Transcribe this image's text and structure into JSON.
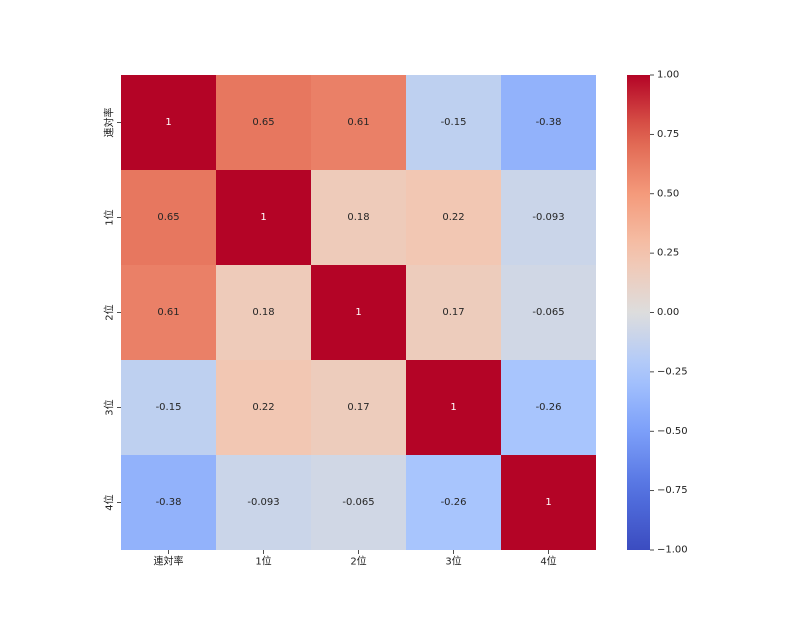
{
  "chart_data": {
    "type": "heatmap",
    "title": "",
    "xlabel": "",
    "ylabel": "",
    "x_categories": [
      "連対率",
      "1位",
      "2位",
      "3位",
      "4位"
    ],
    "y_categories": [
      "連対率",
      "1位",
      "2位",
      "3位",
      "4位"
    ],
    "values": [
      [
        1,
        0.65,
        0.61,
        -0.15,
        -0.38
      ],
      [
        0.65,
        1,
        0.18,
        0.22,
        -0.093
      ],
      [
        0.61,
        0.18,
        1,
        0.17,
        -0.065
      ],
      [
        -0.15,
        0.22,
        0.17,
        1,
        -0.26
      ],
      [
        -0.38,
        -0.093,
        -0.065,
        -0.26,
        1
      ]
    ],
    "value_labels": [
      [
        "1",
        "0.65",
        "0.61",
        "-0.15",
        "-0.38"
      ],
      [
        "0.65",
        "1",
        "0.18",
        "0.22",
        "-0.093"
      ],
      [
        "0.61",
        "0.18",
        "1",
        "0.17",
        "-0.065"
      ],
      [
        "-0.15",
        "0.22",
        "0.17",
        "1",
        "-0.26"
      ],
      [
        "-0.38",
        "-0.093",
        "-0.065",
        "-0.26",
        "1"
      ]
    ],
    "colormap": "coolwarm",
    "vmin": -1.0,
    "vmax": 1.0,
    "colorbar_ticks": [
      1.0,
      0.75,
      0.5,
      0.25,
      0.0,
      -0.25,
      -0.5,
      -0.75,
      -1.0
    ],
    "colorbar_tick_labels": [
      "1.00",
      "0.75",
      "0.50",
      "0.25",
      "0.00",
      "−0.25",
      "−0.50",
      "−0.75",
      "−1.00"
    ],
    "colorbar_position": "right",
    "grid": false,
    "annotate": true
  }
}
